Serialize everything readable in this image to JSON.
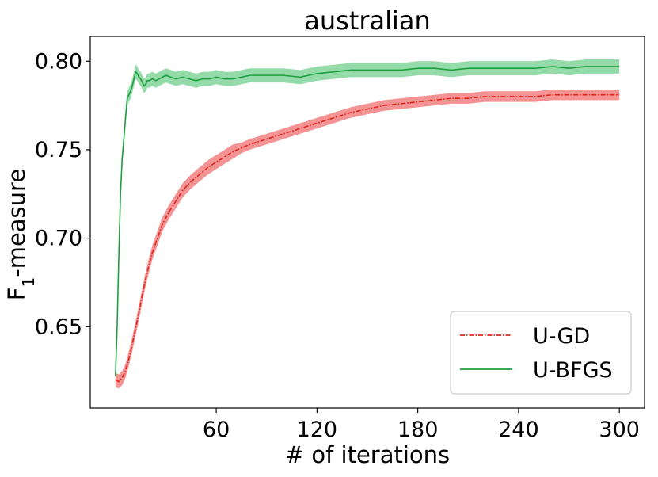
{
  "chart_data": {
    "type": "line",
    "title": "australian",
    "xlabel": "# of iterations",
    "ylabel": "F1-measure",
    "ylabel_main": "F",
    "ylabel_sub": "1",
    "ylabel_rest": "-measure",
    "xlim": [
      -15,
      315
    ],
    "ylim": [
      0.604,
      0.814
    ],
    "xticks": [
      60,
      120,
      180,
      240,
      300
    ],
    "yticks": [
      0.65,
      0.7,
      0.75,
      0.8
    ],
    "xtick_labels": [
      "60",
      "120",
      "180",
      "240",
      "300"
    ],
    "ytick_labels": [
      "0.65",
      "0.70",
      "0.75",
      "0.80"
    ],
    "legend_position": "lower-right",
    "grid": false,
    "series": [
      {
        "name": "U-GD",
        "color": "#e0261f",
        "band_color": "#f28d8d",
        "line_style": "dash-dot",
        "x": [
          0,
          2,
          4,
          6,
          8,
          10,
          12,
          14,
          16,
          18,
          20,
          22,
          25,
          28,
          32,
          36,
          40,
          45,
          50,
          55,
          60,
          65,
          70,
          75,
          80,
          90,
          100,
          110,
          120,
          130,
          140,
          150,
          160,
          170,
          180,
          190,
          200,
          210,
          220,
          230,
          240,
          250,
          260,
          270,
          280,
          290,
          300
        ],
        "y": [
          0.62,
          0.619,
          0.621,
          0.625,
          0.632,
          0.64,
          0.649,
          0.658,
          0.668,
          0.677,
          0.685,
          0.692,
          0.7,
          0.708,
          0.715,
          0.721,
          0.727,
          0.732,
          0.736,
          0.74,
          0.743,
          0.746,
          0.749,
          0.751,
          0.753,
          0.756,
          0.759,
          0.762,
          0.765,
          0.768,
          0.771,
          0.773,
          0.775,
          0.776,
          0.777,
          0.778,
          0.779,
          0.779,
          0.78,
          0.78,
          0.78,
          0.78,
          0.781,
          0.781,
          0.781,
          0.781,
          0.781
        ],
        "band": [
          0.004,
          0.004,
          0.004,
          0.004,
          0.004,
          0.004,
          0.004,
          0.004,
          0.004,
          0.004,
          0.004,
          0.004,
          0.004,
          0.004,
          0.004,
          0.004,
          0.004,
          0.004,
          0.004,
          0.004,
          0.004,
          0.004,
          0.004,
          0.003,
          0.003,
          0.003,
          0.003,
          0.003,
          0.003,
          0.003,
          0.003,
          0.003,
          0.003,
          0.003,
          0.003,
          0.003,
          0.003,
          0.003,
          0.003,
          0.003,
          0.003,
          0.003,
          0.003,
          0.003,
          0.003,
          0.003,
          0.003
        ]
      },
      {
        "name": "U-BFGS",
        "color": "#1f9e40",
        "band_color": "#8fd9a5",
        "line_style": "solid",
        "x": [
          0,
          1,
          2,
          3,
          4,
          5,
          6,
          7,
          8,
          9,
          10,
          11,
          12,
          13,
          14,
          15,
          16,
          17,
          18,
          19,
          20,
          22,
          24,
          26,
          28,
          30,
          33,
          36,
          40,
          44,
          48,
          52,
          56,
          60,
          65,
          70,
          75,
          80,
          85,
          90,
          100,
          110,
          120,
          130,
          140,
          150,
          160,
          170,
          180,
          190,
          200,
          210,
          220,
          230,
          240,
          250,
          260,
          270,
          280,
          290,
          300
        ],
        "y": [
          0.622,
          0.65,
          0.69,
          0.725,
          0.745,
          0.756,
          0.768,
          0.779,
          0.781,
          0.783,
          0.786,
          0.79,
          0.794,
          0.793,
          0.791,
          0.79,
          0.788,
          0.786,
          0.787,
          0.789,
          0.789,
          0.79,
          0.789,
          0.79,
          0.791,
          0.792,
          0.791,
          0.79,
          0.791,
          0.79,
          0.789,
          0.79,
          0.79,
          0.791,
          0.79,
          0.79,
          0.791,
          0.792,
          0.792,
          0.792,
          0.792,
          0.791,
          0.793,
          0.794,
          0.795,
          0.795,
          0.795,
          0.795,
          0.796,
          0.796,
          0.795,
          0.796,
          0.796,
          0.796,
          0.796,
          0.796,
          0.797,
          0.796,
          0.797,
          0.797,
          0.797
        ],
        "band": [
          0.003,
          0.004,
          0.004,
          0.004,
          0.004,
          0.004,
          0.004,
          0.004,
          0.004,
          0.004,
          0.004,
          0.004,
          0.004,
          0.004,
          0.004,
          0.004,
          0.004,
          0.004,
          0.004,
          0.004,
          0.004,
          0.004,
          0.004,
          0.004,
          0.004,
          0.004,
          0.004,
          0.004,
          0.004,
          0.004,
          0.004,
          0.004,
          0.004,
          0.004,
          0.004,
          0.004,
          0.004,
          0.004,
          0.004,
          0.004,
          0.004,
          0.004,
          0.004,
          0.004,
          0.004,
          0.004,
          0.004,
          0.004,
          0.004,
          0.004,
          0.004,
          0.004,
          0.004,
          0.004,
          0.004,
          0.004,
          0.004,
          0.004,
          0.004,
          0.004,
          0.004
        ]
      }
    ]
  }
}
